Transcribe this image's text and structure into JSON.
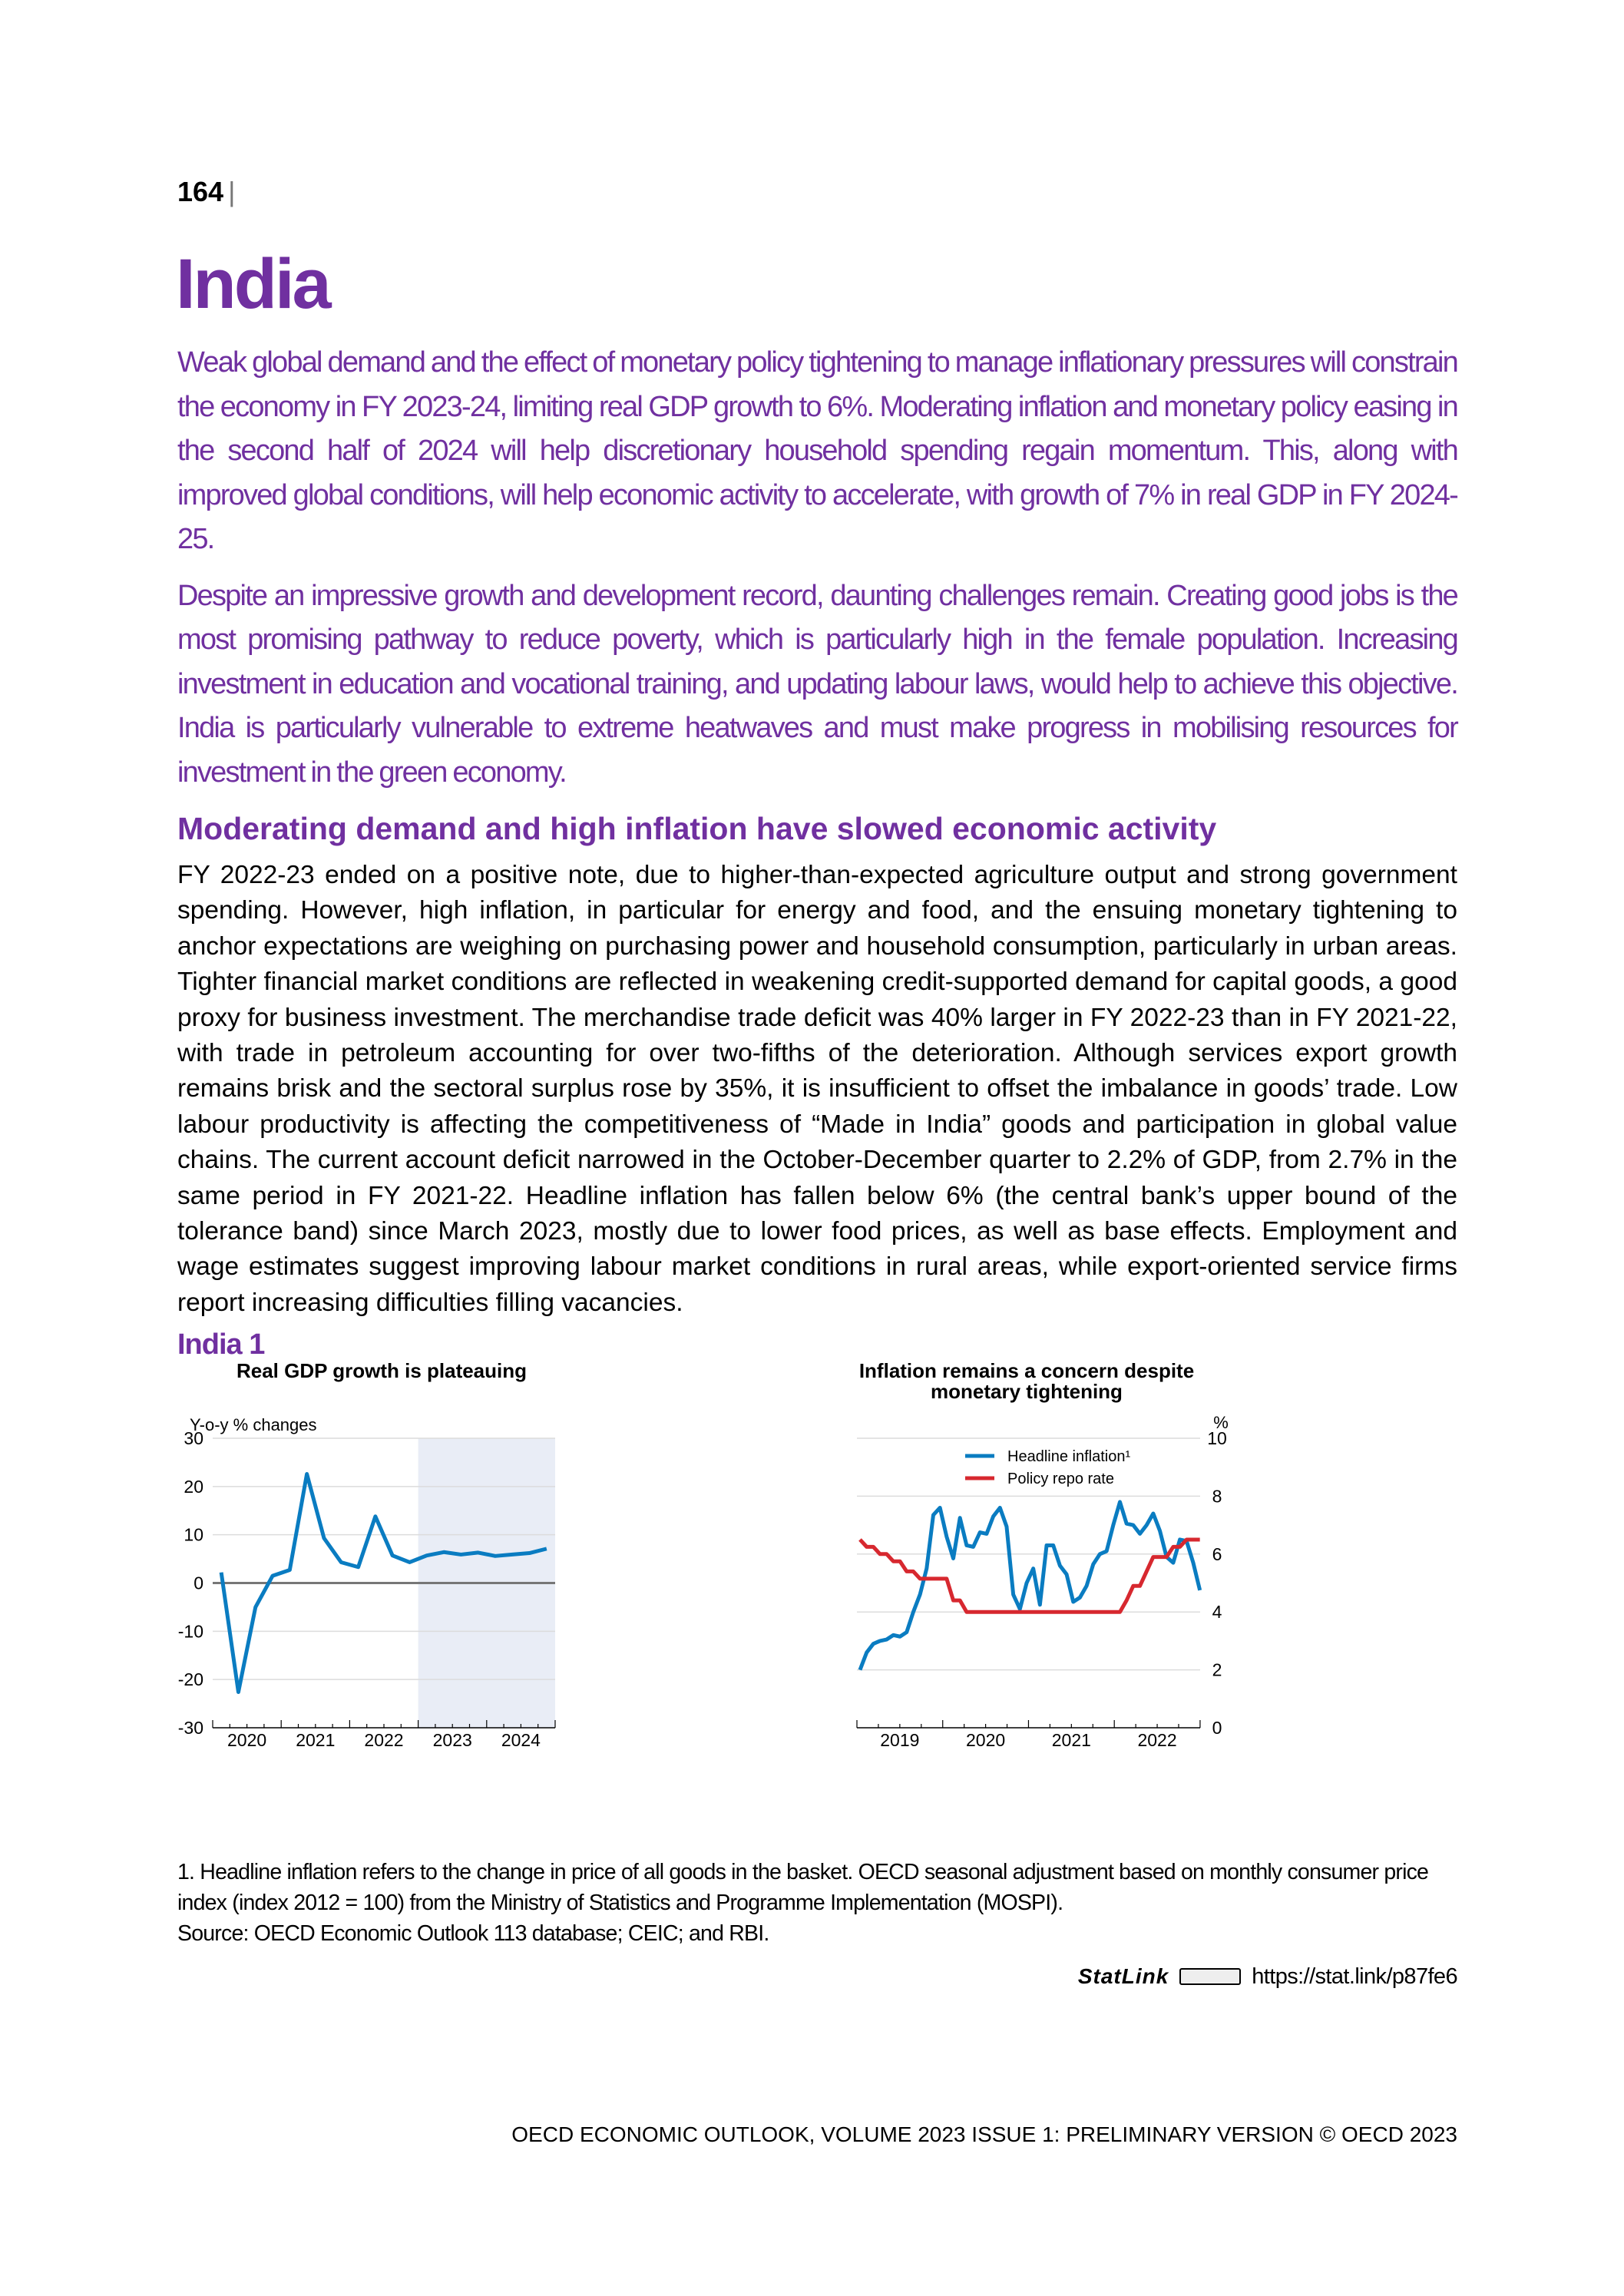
{
  "page": {
    "page_number": "164",
    "page_number_separator": "|",
    "title": "India",
    "lead_paragraphs": [
      "Weak global demand and the effect of monetary policy tightening to manage inflationary pressures will constrain the economy in FY 2023-24, limiting real GDP growth to 6%. Moderating inflation and monetary policy easing in the second half of 2024 will help discretionary household spending regain momentum. This, along with improved global conditions, will help economic activity to accelerate, with growth of 7% in real GDP in FY 2024-25.",
      "Despite an impressive growth and development record, daunting challenges remain. Creating good jobs is the most promising pathway to reduce poverty, which is particularly high in the female population. Increasing investment in education and vocational training, and updating labour laws, would help to achieve this objective. India is particularly vulnerable to extreme heatwaves and must make progress in mobilising resources for investment in the green economy."
    ],
    "section_heading": "Moderating demand and high inflation have slowed economic activity",
    "body_paragraph": "FY 2022-23 ended on a positive note, due to higher-than-expected agriculture output and strong government spending. However, high inflation, in particular for energy and food, and the ensuing monetary tightening to anchor expectations are weighing on purchasing power and household consumption, particularly in urban areas. Tighter financial market conditions are reflected in weakening credit-supported demand for capital goods, a good proxy for business investment. The merchandise trade deficit was 40% larger in FY 2022-23 than in FY 2021-22, with trade in petroleum accounting for over two-fifths of the deterioration. Although services export growth remains brisk and the sectoral surplus rose by 35%, it is insufficient to offset the imbalance in goods’ trade. Low labour productivity is affecting the competitiveness of “Made in India” goods and participation in global value chains. The current account deficit narrowed in the October-December quarter to 2.2% of GDP, from 2.7% in the same period in FY 2021-22. Headline inflation has fallen below 6% (the central bank’s upper bound of the tolerance band) since March 2023, mostly due to lower food prices, as well as base effects. Employment and wage estimates suggest improving labour market conditions in rural areas, while export-oriented service firms report increasing difficulties filling vacancies.",
    "figure_label": "India 1",
    "footnote": "1. Headline inflation refers to the change in price of all goods in the basket. OECD seasonal adjustment based on monthly consumer price index (index 2012 = 100) from the Ministry of Statistics and Programme Implementation (MOSPI).",
    "source": "Source: OECD Economic Outlook 113 database; CEIC; and RBI.",
    "statlink_brand": "StatLink",
    "statlink_logo": "StatLink",
    "statlink_url": "https://stat.link/p87fe6",
    "footer": "OECD ECONOMIC OUTLOOK, VOLUME 2023 ISSUE 1: PRELIMINARY VERSION © OECD 2023"
  },
  "colors": {
    "accent": "#7030a0",
    "blue": "#0a7cc1",
    "red": "#d7282f",
    "shade": "#e9edf6",
    "grid": "#dcdcdc"
  },
  "chart_data": [
    {
      "type": "line",
      "title": "Real GDP growth is plateauing",
      "ylabel": "Y-o-y % changes",
      "xlabel": "",
      "ylim": [
        -30,
        30
      ],
      "yticks": [
        "30",
        "20",
        "10",
        "0",
        "-10",
        "-20",
        "-30"
      ],
      "ytick_values": [
        30,
        20,
        10,
        0,
        -10,
        -20,
        -30
      ],
      "x_tick_labels": [
        "2020",
        "2021",
        "2022",
        "2023",
        "2024"
      ],
      "x_frequency": "quarterly",
      "x_start": "2020Q1",
      "projection_shaded_from": "2023Q1",
      "series": [
        {
          "name": "Real GDP growth",
          "color": "#0a7cc1",
          "values": [
            2.2,
            -22.6,
            -5.0,
            1.5,
            2.7,
            22.6,
            9.3,
            4.3,
            3.3,
            13.8,
            5.7,
            4.3,
            5.7,
            6.4,
            5.9,
            6.3,
            5.6,
            5.9,
            6.2,
            7.1
          ]
        }
      ],
      "grid": true
    },
    {
      "type": "line",
      "title": "Inflation remains a concern despite monetary tightening",
      "title_lines": [
        "Inflation remains a concern despite",
        "monetary tightening"
      ],
      "ylabel": "%",
      "ylim": [
        0,
        10
      ],
      "yticks": [
        "10",
        "8",
        "6",
        "4",
        "2",
        "0"
      ],
      "ytick_values": [
        10,
        8,
        6,
        4,
        2,
        0
      ],
      "x_tick_labels": [
        "2019",
        "2020",
        "2021",
        "2022"
      ],
      "x_frequency": "monthly",
      "x_start": "2019-01",
      "legend_position": "top-center",
      "series": [
        {
          "name": "Headline inflation¹",
          "color": "#0a7cc1",
          "values": [
            2.0,
            2.6,
            2.9,
            3.0,
            3.05,
            3.2,
            3.15,
            3.3,
            4.0,
            4.6,
            5.5,
            7.35,
            7.6,
            6.6,
            5.85,
            7.25,
            6.3,
            6.25,
            6.75,
            6.7,
            7.3,
            7.6,
            6.95,
            4.6,
            4.1,
            5.0,
            5.5,
            4.25,
            6.3,
            6.3,
            5.6,
            5.3,
            4.35,
            4.5,
            4.9,
            5.65,
            6.0,
            6.1,
            7.0,
            7.8,
            7.05,
            7.0,
            6.7,
            7.0,
            7.4,
            6.8,
            5.9,
            5.7,
            6.5,
            6.45,
            5.7,
            4.75
          ]
        },
        {
          "name": "Policy repo rate",
          "color": "#d7282f",
          "values": [
            6.5,
            6.25,
            6.25,
            6.0,
            6.0,
            5.75,
            5.75,
            5.4,
            5.4,
            5.15,
            5.15,
            5.15,
            5.15,
            5.15,
            4.4,
            4.4,
            4.0,
            4.0,
            4.0,
            4.0,
            4.0,
            4.0,
            4.0,
            4.0,
            4.0,
            4.0,
            4.0,
            4.0,
            4.0,
            4.0,
            4.0,
            4.0,
            4.0,
            4.0,
            4.0,
            4.0,
            4.0,
            4.0,
            4.0,
            4.0,
            4.4,
            4.9,
            4.9,
            5.4,
            5.9,
            5.9,
            5.9,
            6.25,
            6.25,
            6.5,
            6.5,
            6.5
          ]
        }
      ],
      "grid": true
    }
  ]
}
